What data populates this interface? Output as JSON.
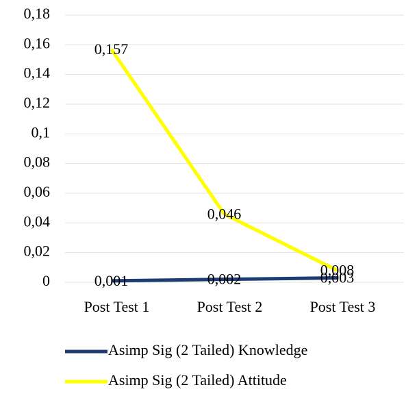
{
  "chart_data": {
    "type": "line",
    "categories": [
      "Post Test 1",
      "Post Test 2",
      "Post Test 3"
    ],
    "series": [
      {
        "name": "Asimp Sig (2 Tailed) Knowledge",
        "color": "#1f3b73",
        "values": [
          0.001,
          0.002,
          0.003
        ],
        "value_labels": [
          "0,001",
          "0,002",
          "0,003"
        ]
      },
      {
        "name": "Asimp Sig (2 Tailed) Attitude",
        "color": "#ffff00",
        "values": [
          0.157,
          0.046,
          0.008
        ],
        "value_labels": [
          "0,157",
          "0,046",
          "0,008"
        ]
      }
    ],
    "ylim": [
      0,
      0.18
    ],
    "yticks": [
      0,
      {
        "value": 0.02,
        "label": "0,02"
      },
      {
        "value": 0.04,
        "label": "0,04"
      },
      {
        "value": 0.06,
        "label": "0,06"
      },
      {
        "value": 0.08,
        "label": "0,08"
      },
      {
        "value": 0.1,
        "label": "0,1"
      },
      {
        "value": 0.12,
        "label": "0,12"
      },
      {
        "value": 0.14,
        "label": "0,14"
      },
      {
        "value": 0.16,
        "label": "0,16"
      },
      {
        "value": 0.18,
        "label": "0,18"
      }
    ],
    "grid": true,
    "legend": "bottom"
  }
}
